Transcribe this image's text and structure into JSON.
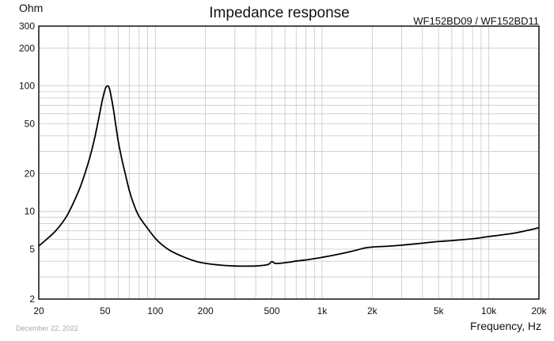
{
  "chart_data": {
    "type": "line",
    "title": "Impedance response",
    "subtitle": "WF152BD09 / WF152BD11",
    "ylabel": "Ohm",
    "xlabel": "Frequency, Hz",
    "date": "December 22, 2022",
    "x_scale": "log",
    "y_scale": "log",
    "xlim": [
      20,
      20000
    ],
    "ylim": [
      2,
      300
    ],
    "x_ticks": [
      {
        "value": 20,
        "label": "20"
      },
      {
        "value": 50,
        "label": "50"
      },
      {
        "value": 100,
        "label": "100"
      },
      {
        "value": 200,
        "label": "200"
      },
      {
        "value": 500,
        "label": "500"
      },
      {
        "value": 1000,
        "label": "1k"
      },
      {
        "value": 2000,
        "label": "2k"
      },
      {
        "value": 5000,
        "label": "5k"
      },
      {
        "value": 10000,
        "label": "10k"
      },
      {
        "value": 20000,
        "label": "20k"
      }
    ],
    "y_ticks": [
      {
        "value": 2,
        "label": "2"
      },
      {
        "value": 5,
        "label": "5"
      },
      {
        "value": 10,
        "label": "10"
      },
      {
        "value": 20,
        "label": "20"
      },
      {
        "value": 50,
        "label": "50"
      },
      {
        "value": 100,
        "label": "100"
      },
      {
        "value": 200,
        "label": "200"
      },
      {
        "value": 300,
        "label": "300"
      }
    ],
    "grid": true,
    "colors": {
      "line": "#000000",
      "grid": "#c8c8c8",
      "frame": "#111111"
    },
    "series": [
      {
        "name": "Impedance",
        "x": [
          20,
          22,
          25,
          28,
          30,
          33,
          36,
          40,
          43,
          46,
          48,
          50,
          51,
          52,
          53,
          54,
          56,
          58,
          60,
          63,
          66,
          70,
          75,
          80,
          90,
          100,
          110,
          125,
          150,
          175,
          200,
          250,
          300,
          350,
          400,
          450,
          480,
          500,
          520,
          550,
          600,
          650,
          700,
          800,
          900,
          1000,
          1200,
          1500,
          1800,
          2000,
          2500,
          3000,
          4000,
          5000,
          6000,
          8000,
          10000,
          12000,
          15000,
          20000
        ],
        "values": [
          5.3,
          5.9,
          6.9,
          8.3,
          9.6,
          12.5,
          16.5,
          25.5,
          37,
          57,
          76,
          94,
          99,
          100,
          96,
          86,
          66,
          48,
          36,
          26,
          20,
          14.5,
          11,
          9.1,
          7.3,
          6.1,
          5.4,
          4.8,
          4.3,
          4.0,
          3.85,
          3.72,
          3.67,
          3.66,
          3.67,
          3.72,
          3.8,
          3.98,
          3.86,
          3.85,
          3.9,
          3.95,
          4.02,
          4.1,
          4.2,
          4.3,
          4.5,
          4.8,
          5.1,
          5.2,
          5.28,
          5.38,
          5.58,
          5.75,
          5.85,
          6.05,
          6.3,
          6.5,
          6.8,
          7.4
        ]
      }
    ]
  }
}
